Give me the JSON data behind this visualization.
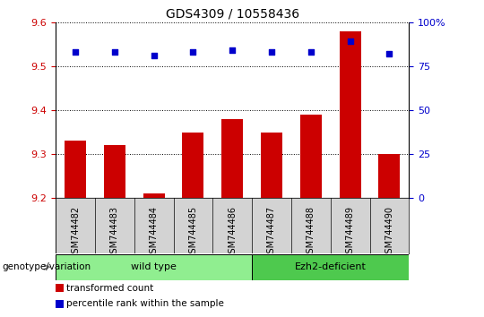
{
  "title": "GDS4309 / 10558436",
  "samples": [
    "GSM744482",
    "GSM744483",
    "GSM744484",
    "GSM744485",
    "GSM744486",
    "GSM744487",
    "GSM744488",
    "GSM744489",
    "GSM744490"
  ],
  "transformed_counts": [
    9.33,
    9.32,
    9.21,
    9.35,
    9.38,
    9.35,
    9.39,
    9.58,
    9.3
  ],
  "percentile_ranks": [
    83,
    83,
    81,
    83,
    84,
    83,
    83,
    89,
    82
  ],
  "groups": [
    {
      "label": "wild type",
      "indices": [
        0,
        1,
        2,
        3,
        4
      ],
      "color": "#90EE90"
    },
    {
      "label": "Ezh2-deficient",
      "indices": [
        5,
        6,
        7,
        8
      ],
      "color": "#4EC94E"
    }
  ],
  "ylim_left": [
    9.2,
    9.6
  ],
  "ylim_right": [
    0,
    100
  ],
  "yticks_left": [
    9.2,
    9.3,
    9.4,
    9.5,
    9.6
  ],
  "yticks_right": [
    0,
    25,
    50,
    75,
    100
  ],
  "bar_color": "#CC0000",
  "dot_color": "#0000CC",
  "bar_width": 0.55,
  "legend_items": [
    {
      "label": "transformed count",
      "color": "#CC0000"
    },
    {
      "label": "percentile rank within the sample",
      "color": "#0000CC"
    }
  ],
  "genotype_label": "genotype/variation",
  "tick_label_color_left": "#CC0000",
  "tick_label_color_right": "#0000CC",
  "bg_color": "#FFFFFF",
  "plot_bg_color": "#FFFFFF",
  "sample_bg_color": "#D3D3D3"
}
